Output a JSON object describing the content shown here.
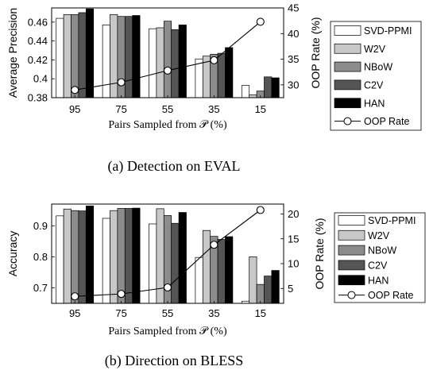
{
  "chart_data": [
    {
      "type": "bar",
      "caption": "(a) Detection on EVAL",
      "xlabel": "Pairs Sampled from 𝒫 (%)",
      "ylabel": "Average Precision",
      "ylabel_right": "OOP Rate (%)",
      "categories": [
        "95",
        "75",
        "55",
        "35",
        "15"
      ],
      "ylim": [
        0.38,
        0.475
      ],
      "yticks": [
        "0.38",
        "0.4",
        "0.42",
        "0.44",
        "0.46"
      ],
      "y2lim": [
        27.5,
        45
      ],
      "y2ticks": [
        "30",
        "35",
        "40",
        "45"
      ],
      "series": [
        {
          "name": "SVD-PPMI",
          "color": "#ffffff",
          "values": [
            0.464,
            0.457,
            0.453,
            0.421,
            0.393
          ]
        },
        {
          "name": "W2V",
          "color": "#c8c8c8",
          "values": [
            0.468,
            0.468,
            0.454,
            0.424,
            0.383
          ]
        },
        {
          "name": "NBoW",
          "color": "#8c8c8c",
          "values": [
            0.468,
            0.466,
            0.461,
            0.426,
            0.387
          ]
        },
        {
          "name": "C2V",
          "color": "#555555",
          "values": [
            0.47,
            0.466,
            0.452,
            0.427,
            0.402
          ]
        },
        {
          "name": "HAN",
          "color": "#000000",
          "values": [
            0.474,
            0.467,
            0.457,
            0.433,
            0.401
          ]
        }
      ],
      "line_series": {
        "name": "OOP Rate",
        "axis": "right",
        "values": [
          29.0,
          30.5,
          32.8,
          34.8,
          42.3
        ]
      },
      "legend": "right"
    },
    {
      "type": "bar",
      "caption": "(b) Direction on BLESS",
      "xlabel": "Pairs Sampled from 𝒫 (%)",
      "ylabel": "Accuracy",
      "ylabel_right": "OOP Rate (%)",
      "categories": [
        "95",
        "75",
        "55",
        "35",
        "15"
      ],
      "ylim": [
        0.65,
        0.97
      ],
      "yticks": [
        "0.7",
        "0.8",
        "0.9"
      ],
      "y2lim": [
        2,
        22
      ],
      "y2ticks": [
        "5",
        "10",
        "15",
        "20"
      ],
      "series": [
        {
          "name": "SVD-PPMI",
          "color": "#ffffff",
          "values": [
            0.932,
            0.924,
            0.906,
            0.798,
            0.657
          ]
        },
        {
          "name": "W2V",
          "color": "#c8c8c8",
          "values": [
            0.954,
            0.949,
            0.955,
            0.885,
            0.8
          ]
        },
        {
          "name": "NBoW",
          "color": "#8c8c8c",
          "values": [
            0.949,
            0.956,
            0.933,
            0.866,
            0.711
          ]
        },
        {
          "name": "C2V",
          "color": "#555555",
          "values": [
            0.948,
            0.956,
            0.908,
            0.856,
            0.738
          ]
        },
        {
          "name": "HAN",
          "color": "#000000",
          "values": [
            0.964,
            0.957,
            0.943,
            0.865,
            0.756
          ]
        }
      ],
      "line_series": {
        "name": "OOP Rate",
        "axis": "right",
        "values": [
          3.4,
          3.9,
          5.2,
          13.8,
          20.8
        ]
      },
      "legend": "right"
    }
  ]
}
